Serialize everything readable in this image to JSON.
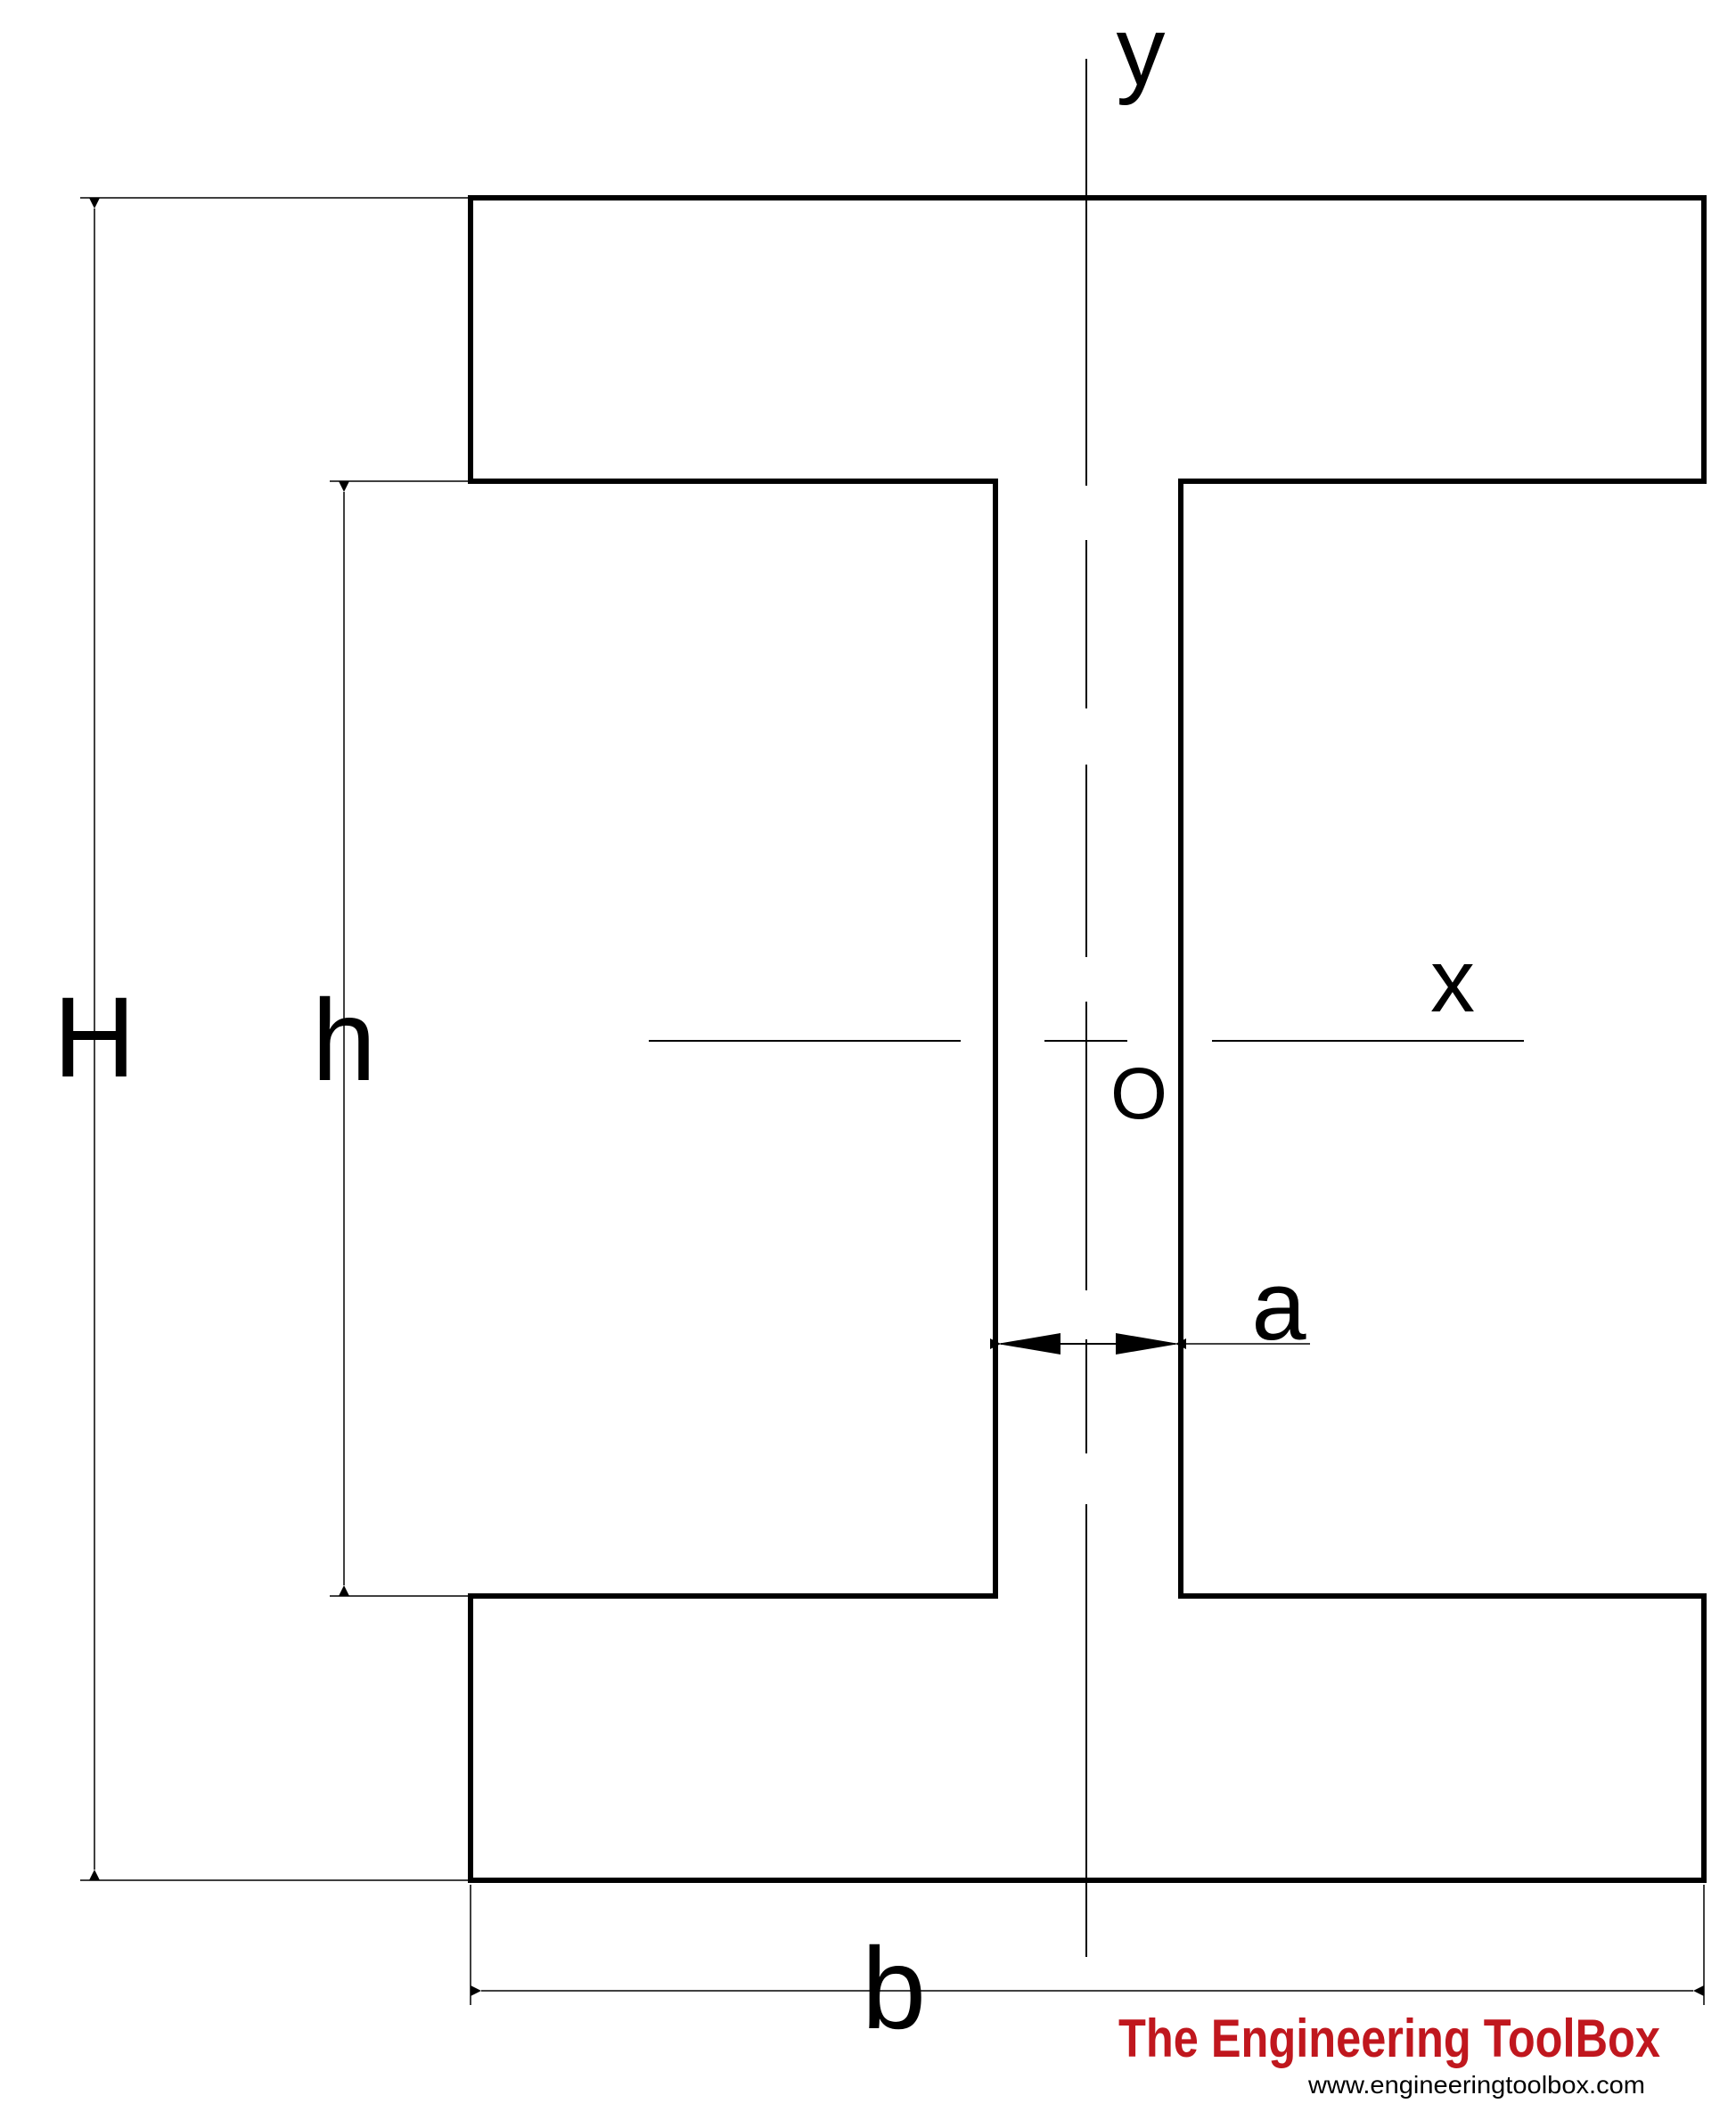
{
  "diagram": {
    "labels": {
      "H": "H",
      "h": "h",
      "b": "b",
      "a": "a",
      "x": "x",
      "y": "y",
      "O": "O"
    }
  },
  "branding": {
    "name": "The Engineering ToolBox",
    "url": "www.engineeringtoolbox.com"
  },
  "colors": {
    "outline": "#000000",
    "brand": "#c0171e"
  }
}
